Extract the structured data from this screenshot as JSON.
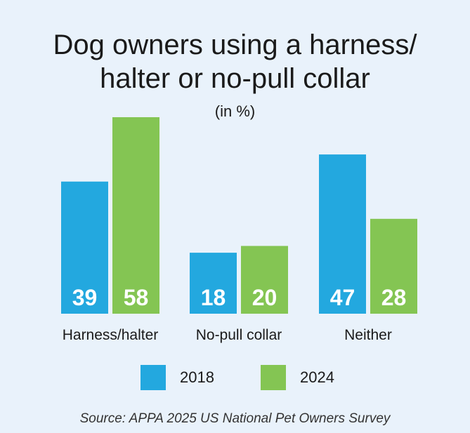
{
  "header": {
    "title_line1": "Dog owners using a harness/",
    "title_line2": "halter or no-pull collar",
    "subtitle": "(in %)"
  },
  "colors": {
    "series_2018": "#23a8df",
    "series_2024": "#84c553",
    "label_text": "#ffffff"
  },
  "chart_data": {
    "type": "bar",
    "title": "Dog owners using a harness/ halter or no-pull collar",
    "subtitle": "(in %)",
    "categories": [
      "Harness/halter",
      "No-pull collar",
      "Neither"
    ],
    "series": [
      {
        "name": "2018",
        "values": [
          39,
          18,
          47
        ]
      },
      {
        "name": "2024",
        "values": [
          58,
          20,
          28
        ]
      }
    ],
    "ylim": [
      0,
      58
    ],
    "grid": false,
    "legend_position": "bottom"
  },
  "legend": {
    "items": [
      {
        "label": "2018"
      },
      {
        "label": "2024"
      }
    ]
  },
  "footer": {
    "source": "Source: APPA 2025 US National Pet Owners Survey"
  }
}
